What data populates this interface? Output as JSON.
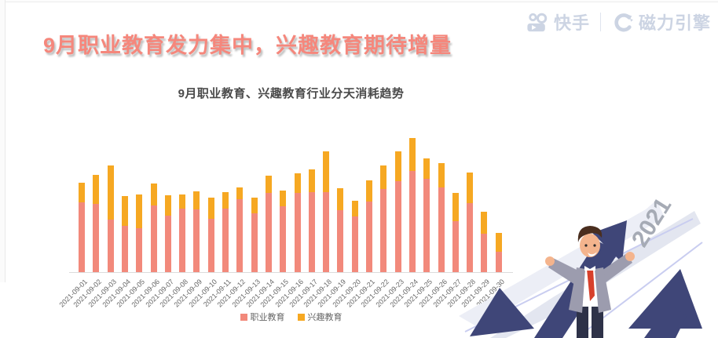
{
  "header": {
    "title": "9月职业教育发力集中，兴趣教育期待增量",
    "title_color": "#f5877c"
  },
  "brand": {
    "kuaishou_label": "快手",
    "cili_label": "磁力引擎",
    "color": "#ccd4e3"
  },
  "chart_data": {
    "type": "bar",
    "stacked": true,
    "title": "9月职业教育、兴趣教育行业分天消耗趋势",
    "categories": [
      "2021-09-01",
      "2021-09-02",
      "2021-09-03",
      "2021-09-04",
      "2021-09-05",
      "2021-09-06",
      "2021-09-07",
      "2021-09-08",
      "2021-09-09",
      "2021-09-10",
      "2021-09-11",
      "2021-09-12",
      "2021-09-13",
      "2021-09-14",
      "2021-09-15",
      "2021-09-16",
      "2021-09-17",
      "2021-09-18",
      "2021-09-19",
      "2021-09-20",
      "2021-09-21",
      "2021-09-22",
      "2021-09-23",
      "2021-09-24",
      "2021-09-25",
      "2021-09-26",
      "2021-09-27",
      "2021-09-28",
      "2021-09-29",
      "2021-09-30"
    ],
    "series": [
      {
        "name": "职业教育",
        "color": "#f2897b",
        "values": [
          89,
          87,
          67,
          59,
          56,
          85,
          72,
          81,
          80,
          68,
          81,
          93,
          75,
          101,
          84,
          101,
          102,
          102,
          79,
          71,
          90,
          106,
          116,
          129,
          119,
          108,
          65,
          88,
          49,
          26
        ]
      },
      {
        "name": "兴趣教育",
        "color": "#f6a822",
        "values": [
          25,
          37,
          69,
          38,
          43,
          28,
          26,
          18,
          23,
          27,
          21,
          15,
          20,
          22,
          20,
          25,
          29,
          52,
          28,
          20,
          27,
          30,
          38,
          42,
          26,
          31,
          36,
          39,
          28,
          24
        ]
      }
    ],
    "xlabel": "",
    "ylabel": "",
    "ylim": [
      0,
      200
    ],
    "values_are": "relative_heights_no_y_axis_shown",
    "grid": false,
    "legend_position": "bottom",
    "axis_line_color": "#dcdcdc",
    "label_color": "#666666"
  },
  "illustration": {
    "year_label": "2021"
  }
}
